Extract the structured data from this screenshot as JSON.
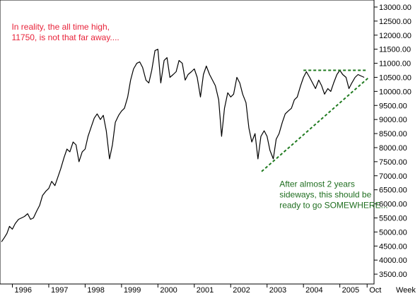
{
  "chart_data": {
    "type": "line",
    "title": "",
    "xlabel": "",
    "ylabel": "",
    "x_axis_unit_label": "Week",
    "xlim": [
      1995.66,
      2005.94
    ],
    "ylim": [
      3150,
      13250
    ],
    "y_axis_position": "right",
    "grid": false,
    "x_ticks": [
      {
        "label": "1996",
        "value": 1996.0
      },
      {
        "label": "1997",
        "value": 1997.0
      },
      {
        "label": "1998",
        "value": 1998.0
      },
      {
        "label": "1999",
        "value": 1999.0
      },
      {
        "label": "2000",
        "value": 2000.0
      },
      {
        "label": "2001",
        "value": 2001.0
      },
      {
        "label": "2002",
        "value": 2002.0
      },
      {
        "label": "2003",
        "value": 2003.0
      },
      {
        "label": "2004",
        "value": 2004.0
      },
      {
        "label": "2005",
        "value": 2005.0
      },
      {
        "label": "Oct",
        "value": 2005.75
      }
    ],
    "y_ticks": [
      {
        "label": "3500.00",
        "value": 3500
      },
      {
        "label": "4000.00",
        "value": 4000
      },
      {
        "label": "4500.00",
        "value": 4500
      },
      {
        "label": "5000.00",
        "value": 5000
      },
      {
        "label": "5500.00",
        "value": 5500
      },
      {
        "label": "6000.00",
        "value": 6000
      },
      {
        "label": "6500.00",
        "value": 6500
      },
      {
        "label": "7000.00",
        "value": 7000
      },
      {
        "label": "7500.00",
        "value": 7500
      },
      {
        "label": "8000.00",
        "value": 8000
      },
      {
        "label": "8500.00",
        "value": 8500
      },
      {
        "label": "9000.00",
        "value": 9000
      },
      {
        "label": "9500.00",
        "value": 9500
      },
      {
        "label": "10000.00",
        "value": 10000
      },
      {
        "label": "10500.00",
        "value": 10500
      },
      {
        "label": "11000.00",
        "value": 11000
      },
      {
        "label": "11500.00",
        "value": 11500
      },
      {
        "label": "12000.00",
        "value": 12000
      },
      {
        "label": "12500.00",
        "value": 12500
      },
      {
        "label": "13000.00",
        "value": 13000
      }
    ],
    "series": [
      {
        "color": "#000000",
        "points": [
          [
            1995.7,
            4650
          ],
          [
            1995.78,
            4800
          ],
          [
            1995.85,
            4950
          ],
          [
            1995.92,
            5200
          ],
          [
            1996.0,
            5100
          ],
          [
            1996.08,
            5300
          ],
          [
            1996.17,
            5450
          ],
          [
            1996.25,
            5500
          ],
          [
            1996.33,
            5550
          ],
          [
            1996.42,
            5650
          ],
          [
            1996.5,
            5450
          ],
          [
            1996.58,
            5500
          ],
          [
            1996.67,
            5750
          ],
          [
            1996.75,
            5950
          ],
          [
            1996.83,
            6300
          ],
          [
            1996.92,
            6450
          ],
          [
            1997.0,
            6550
          ],
          [
            1997.08,
            6800
          ],
          [
            1997.17,
            6650
          ],
          [
            1997.25,
            6950
          ],
          [
            1997.33,
            7250
          ],
          [
            1997.42,
            7650
          ],
          [
            1997.5,
            7950
          ],
          [
            1997.58,
            7850
          ],
          [
            1997.67,
            8200
          ],
          [
            1997.75,
            8100
          ],
          [
            1997.83,
            7500
          ],
          [
            1997.92,
            7850
          ],
          [
            1998.0,
            7950
          ],
          [
            1998.08,
            8400
          ],
          [
            1998.17,
            8750
          ],
          [
            1998.25,
            9050
          ],
          [
            1998.33,
            9200
          ],
          [
            1998.42,
            9000
          ],
          [
            1998.5,
            9150
          ],
          [
            1998.58,
            8600
          ],
          [
            1998.67,
            7600
          ],
          [
            1998.75,
            8100
          ],
          [
            1998.83,
            8900
          ],
          [
            1998.92,
            9150
          ],
          [
            1999.0,
            9300
          ],
          [
            1999.08,
            9400
          ],
          [
            1999.17,
            9800
          ],
          [
            1999.25,
            10400
          ],
          [
            1999.33,
            10800
          ],
          [
            1999.42,
            11000
          ],
          [
            1999.5,
            11050
          ],
          [
            1999.58,
            10850
          ],
          [
            1999.67,
            10400
          ],
          [
            1999.75,
            10300
          ],
          [
            1999.83,
            10750
          ],
          [
            1999.92,
            11450
          ],
          [
            2000.0,
            11500
          ],
          [
            2000.08,
            10300
          ],
          [
            2000.17,
            11100
          ],
          [
            2000.25,
            11200
          ],
          [
            2000.33,
            10500
          ],
          [
            2000.42,
            10600
          ],
          [
            2000.5,
            10700
          ],
          [
            2000.58,
            11100
          ],
          [
            2000.67,
            11000
          ],
          [
            2000.75,
            10400
          ],
          [
            2000.83,
            10600
          ],
          [
            2000.92,
            10700
          ],
          [
            2001.0,
            10800
          ],
          [
            2001.08,
            10500
          ],
          [
            2001.17,
            9800
          ],
          [
            2001.25,
            10600
          ],
          [
            2001.33,
            10900
          ],
          [
            2001.42,
            10600
          ],
          [
            2001.5,
            10400
          ],
          [
            2001.58,
            10200
          ],
          [
            2001.67,
            9700
          ],
          [
            2001.75,
            8400
          ],
          [
            2001.83,
            9400
          ],
          [
            2001.92,
            9950
          ],
          [
            2002.0,
            9800
          ],
          [
            2002.08,
            9900
          ],
          [
            2002.17,
            10500
          ],
          [
            2002.25,
            10300
          ],
          [
            2002.33,
            9900
          ],
          [
            2002.42,
            9600
          ],
          [
            2002.5,
            8700
          ],
          [
            2002.58,
            8200
          ],
          [
            2002.67,
            8500
          ],
          [
            2002.75,
            7600
          ],
          [
            2002.83,
            8400
          ],
          [
            2002.92,
            8600
          ],
          [
            2003.0,
            8400
          ],
          [
            2003.08,
            7900
          ],
          [
            2003.17,
            7600
          ],
          [
            2003.25,
            8300
          ],
          [
            2003.33,
            8500
          ],
          [
            2003.42,
            8900
          ],
          [
            2003.5,
            9200
          ],
          [
            2003.58,
            9300
          ],
          [
            2003.67,
            9400
          ],
          [
            2003.75,
            9700
          ],
          [
            2003.83,
            9800
          ],
          [
            2003.92,
            10200
          ],
          [
            2004.0,
            10500
          ],
          [
            2004.08,
            10700
          ],
          [
            2004.17,
            10500
          ],
          [
            2004.25,
            10300
          ],
          [
            2004.33,
            10100
          ],
          [
            2004.42,
            10400
          ],
          [
            2004.5,
            10200
          ],
          [
            2004.58,
            9900
          ],
          [
            2004.67,
            10100
          ],
          [
            2004.75,
            10000
          ],
          [
            2004.83,
            10300
          ],
          [
            2004.92,
            10600
          ],
          [
            2005.0,
            10750
          ],
          [
            2005.08,
            10600
          ],
          [
            2005.17,
            10500
          ],
          [
            2005.25,
            10100
          ],
          [
            2005.33,
            10300
          ],
          [
            2005.42,
            10500
          ],
          [
            2005.5,
            10600
          ],
          [
            2005.58,
            10550
          ],
          [
            2005.67,
            10500
          ]
        ]
      }
    ],
    "trend_lines": [
      {
        "style": "dashed",
        "color": "#1f7a1f",
        "from": [
          2004.0,
          10750
        ],
        "to": [
          2005.75,
          10750
        ]
      },
      {
        "style": "dashed",
        "color": "#1f7a1f",
        "from": [
          2002.85,
          7150
        ],
        "to": [
          2005.8,
          10500
        ]
      }
    ],
    "annotations": [
      {
        "lines": [
          "In reality, the all time high,",
          "11750, is not that far away...."
        ],
        "color": "#e8233a",
        "anchor": [
          1995.98,
          12200
        ]
      },
      {
        "lines": [
          "After almost 2 years",
          "sideways, this should be",
          "ready to go SOMEWHERE..."
        ],
        "color": "#1f6e1f",
        "anchor": [
          2003.34,
          6600
        ]
      }
    ]
  }
}
